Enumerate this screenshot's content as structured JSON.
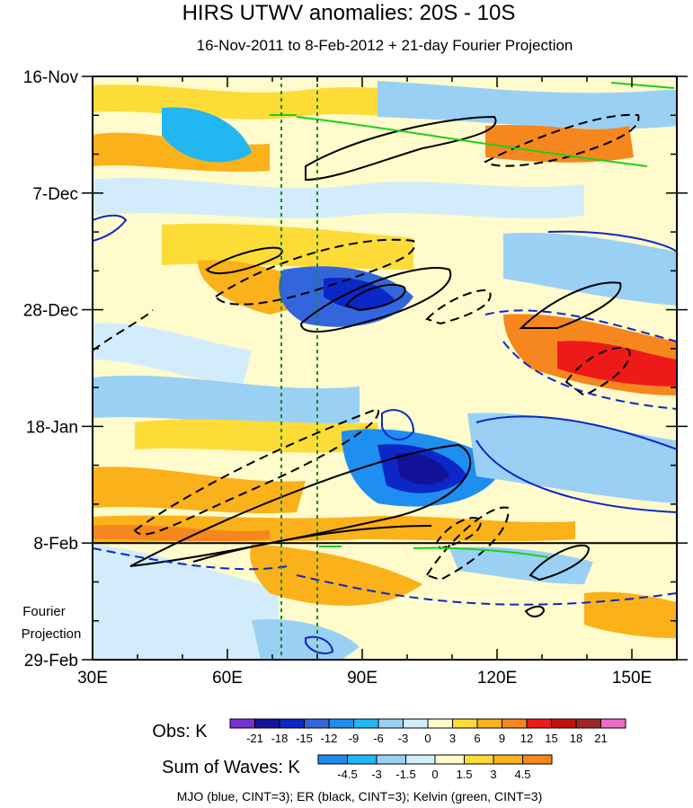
{
  "chart_data": {
    "type": "heatmap",
    "title": "HIRS UTWV anomalies: 20S - 10S",
    "subtitle": "16-Nov-2011 to 8-Feb-2012 + 21-day Fourier Projection",
    "x_ticks": [
      {
        "value": 30,
        "label": "30E"
      },
      {
        "value": 60,
        "label": "60E"
      },
      {
        "value": 90,
        "label": "90E"
      },
      {
        "value": 120,
        "label": "120E"
      },
      {
        "value": 150,
        "label": "150E"
      }
    ],
    "xlim": [
      30,
      160
    ],
    "y_ticks": [
      {
        "date": "2011-11-16",
        "label": "16-Nov"
      },
      {
        "date": "2011-12-07",
        "label": "7-Dec"
      },
      {
        "date": "2011-12-28",
        "label": "28-Dec"
      },
      {
        "date": "2012-01-18",
        "label": "18-Jan"
      },
      {
        "date": "2012-02-08",
        "label": "8-Feb"
      },
      {
        "date": "2012-02-29",
        "label": "29-Feb"
      }
    ],
    "ylim": [
      "2011-11-16",
      "2012-02-29"
    ],
    "forecast_start": "2012-02-08",
    "projection_label": [
      "Fourier",
      "Projection"
    ],
    "reference_lines": [
      72,
      80
    ],
    "obs_colorbar": {
      "label": "Obs: K",
      "levels": [
        -21,
        -18,
        -15,
        -12,
        -9,
        -6,
        -3,
        0,
        3,
        6,
        9,
        12,
        15,
        18,
        21
      ],
      "colors": [
        "#7a2fd6",
        "#13139a",
        "#0c27c8",
        "#3366dd",
        "#1e8ef0",
        "#22b6f3",
        "#9bd0f5",
        "#d2ecfb",
        "#fffbcc",
        "#fddc38",
        "#fab11a",
        "#f6861e",
        "#ee1a1a",
        "#c21111",
        "#9d2727",
        "#f06bc6"
      ]
    },
    "waves_colorbar": {
      "label": "Sum of Waves: K",
      "levels": [
        -4.5,
        -3,
        -1.5,
        0,
        1.5,
        3,
        4.5
      ],
      "colors": [
        "#1e8ef0",
        "#22b6f3",
        "#9bd0f5",
        "#d2ecfb",
        "#fffbcc",
        "#fddc38",
        "#fab11a",
        "#f6861e"
      ]
    },
    "legend_note": "MJO (blue, CINT=3); ER (black, CINT=3); Kelvin (green, CINT=3)"
  }
}
